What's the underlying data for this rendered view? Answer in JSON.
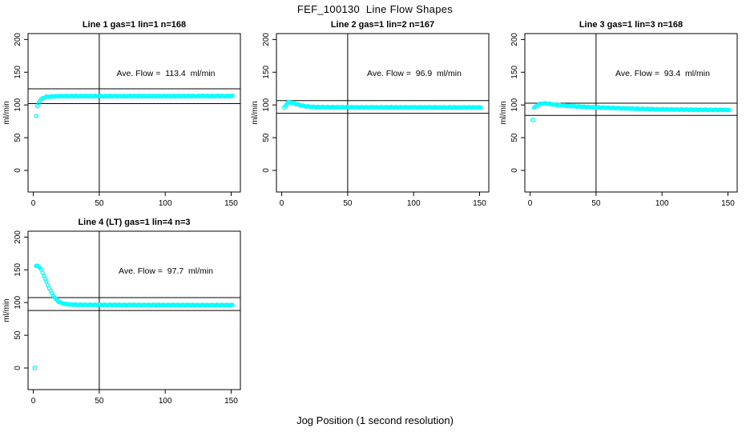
{
  "figure": {
    "title": "FEF_100130  Line Flow Shapes",
    "xlabel": "Jog Position (1 second resolution)",
    "colors": {
      "points": "#00FFFF",
      "axis": "#000000",
      "background": "#FFFFFF",
      "text": "#000000"
    }
  },
  "chart_data": [
    {
      "type": "scatter",
      "title": "Line 1 gas=1 lin=1 n=168",
      "annotation": "Ave. Flow =  113.4  ml/min",
      "ave_flow": 113.4,
      "ylabel": "ml/min",
      "x_ticks": [
        0,
        50,
        100,
        150
      ],
      "y_ticks": [
        0,
        50,
        100,
        150,
        200
      ],
      "xlim": [
        -4,
        157
      ],
      "ylim": [
        -33,
        209
      ],
      "vline_x": 50,
      "hlines": [
        124.7,
        102.1
      ],
      "grid": false,
      "legend": false,
      "outliers": [],
      "curve": [
        [
          2,
          83
        ],
        [
          3,
          97.5
        ],
        [
          4,
          103.5
        ],
        [
          5,
          106.5
        ],
        [
          6,
          108.5
        ],
        [
          7,
          110
        ],
        [
          8,
          111
        ],
        [
          9,
          111.8
        ],
        [
          10,
          112.3
        ],
        [
          12,
          112.8
        ],
        [
          14,
          113
        ],
        [
          16,
          113.2
        ],
        [
          18,
          113.3
        ],
        [
          20,
          113.4
        ],
        [
          25,
          113.4
        ],
        [
          30,
          113.5
        ],
        [
          35,
          113.4
        ],
        [
          40,
          113.5
        ],
        [
          45,
          113.4
        ],
        [
          50,
          113.5
        ],
        [
          55,
          113.4
        ],
        [
          60,
          113.5
        ],
        [
          65,
          113.4
        ],
        [
          70,
          113.5
        ],
        [
          75,
          113.4
        ],
        [
          80,
          113.5
        ],
        [
          85,
          113.4
        ],
        [
          90,
          113.5
        ],
        [
          95,
          113.4
        ],
        [
          100,
          113.5
        ],
        [
          105,
          113.4
        ],
        [
          110,
          113.5
        ],
        [
          115,
          113.5
        ],
        [
          120,
          113.6
        ],
        [
          125,
          113.5
        ],
        [
          130,
          113.7
        ],
        [
          135,
          113.5
        ],
        [
          140,
          113.6
        ],
        [
          145,
          113.5
        ],
        [
          151,
          113.6
        ]
      ]
    },
    {
      "type": "scatter",
      "title": "Line 2 gas=1 lin=2 n=167",
      "annotation": "Ave. Flow =  96.9  ml/min",
      "ave_flow": 96.9,
      "ylabel": "ml/min",
      "x_ticks": [
        0,
        50,
        100,
        150
      ],
      "y_ticks": [
        0,
        50,
        100,
        150,
        200
      ],
      "xlim": [
        -4,
        157
      ],
      "ylim": [
        -33,
        209
      ],
      "vline_x": 50,
      "hlines": [
        106.6,
        87.2
      ],
      "grid": false,
      "legend": false,
      "outliers": [
        [
          2,
          96.2
        ]
      ],
      "curve": [
        [
          3,
          99.5
        ],
        [
          4,
          102.3
        ],
        [
          5,
          103.8
        ],
        [
          6,
          104.2
        ],
        [
          7,
          104
        ],
        [
          8,
          103.4
        ],
        [
          9,
          102.7
        ],
        [
          10,
          102
        ],
        [
          11,
          101.3
        ],
        [
          12,
          100.7
        ],
        [
          13,
          100.1
        ],
        [
          14,
          99.6
        ],
        [
          15,
          99.1
        ],
        [
          16,
          98.7
        ],
        [
          17,
          98.4
        ],
        [
          18,
          98.1
        ],
        [
          19,
          97.8
        ],
        [
          20,
          97.6
        ],
        [
          22,
          97.2
        ],
        [
          24,
          97
        ],
        [
          26,
          96.8
        ],
        [
          28,
          96.7
        ],
        [
          30,
          96.6
        ],
        [
          35,
          96.6
        ],
        [
          40,
          96.5
        ],
        [
          45,
          96.5
        ],
        [
          50,
          96.5
        ],
        [
          60,
          96.4
        ],
        [
          70,
          96.4
        ],
        [
          80,
          96.4
        ],
        [
          90,
          96.3
        ],
        [
          100,
          96.3
        ],
        [
          110,
          96.3
        ],
        [
          120,
          96.2
        ],
        [
          130,
          96.2
        ],
        [
          140,
          96.2
        ],
        [
          151,
          96.2
        ]
      ]
    },
    {
      "type": "scatter",
      "title": "Line 3 gas=1 lin=3 n=168",
      "annotation": "Ave. Flow =  93.4  ml/min",
      "ave_flow": 93.4,
      "ylabel": "ml/min",
      "x_ticks": [
        0,
        50,
        100,
        150
      ],
      "y_ticks": [
        0,
        50,
        100,
        150,
        200
      ],
      "xlim": [
        -4,
        157
      ],
      "ylim": [
        -33,
        209
      ],
      "vline_x": 50,
      "hlines": [
        102.7,
        84.1
      ],
      "grid": false,
      "legend": false,
      "outliers": [
        [
          2,
          77
        ]
      ],
      "curve": [
        [
          3,
          95.5
        ],
        [
          4,
          97
        ],
        [
          5,
          98.8
        ],
        [
          6,
          100.2
        ],
        [
          7,
          101.2
        ],
        [
          8,
          101.8
        ],
        [
          9,
          102.1
        ],
        [
          10,
          102.3
        ],
        [
          11,
          102.3
        ],
        [
          12,
          102.2
        ],
        [
          13,
          102
        ],
        [
          14,
          101.8
        ],
        [
          15,
          101.5
        ],
        [
          16,
          101.2
        ],
        [
          18,
          100.7
        ],
        [
          20,
          100.2
        ],
        [
          22,
          99.8
        ],
        [
          24,
          99.4
        ],
        [
          26,
          99
        ],
        [
          28,
          98.7
        ],
        [
          30,
          98.4
        ],
        [
          33,
          98
        ],
        [
          36,
          97.6
        ],
        [
          39,
          97.3
        ],
        [
          42,
          97
        ],
        [
          45,
          96.7
        ],
        [
          48,
          96.4
        ],
        [
          50,
          96.3
        ],
        [
          55,
          95.9
        ],
        [
          60,
          95.5
        ],
        [
          65,
          95.2
        ],
        [
          70,
          94.9
        ],
        [
          75,
          94.6
        ],
        [
          80,
          94.3
        ],
        [
          85,
          94
        ],
        [
          90,
          93.8
        ],
        [
          95,
          93.5
        ],
        [
          100,
          93.3
        ],
        [
          105,
          93.2
        ],
        [
          110,
          93
        ],
        [
          115,
          92.9
        ],
        [
          120,
          92.8
        ],
        [
          125,
          92.7
        ],
        [
          130,
          92.6
        ],
        [
          135,
          92.5
        ],
        [
          140,
          92.5
        ],
        [
          145,
          92.4
        ],
        [
          151,
          92.4
        ]
      ]
    },
    {
      "type": "scatter",
      "title": "Line 4 (LT) gas=1 lin=4 n=3",
      "annotation": "Ave. Flow =  97.7  ml/min",
      "ave_flow": 97.7,
      "ylabel": "ml/min",
      "x_ticks": [
        0,
        50,
        100,
        150
      ],
      "y_ticks": [
        0,
        50,
        100,
        150,
        200
      ],
      "xlim": [
        -4,
        157
      ],
      "ylim": [
        -33,
        209
      ],
      "vline_x": 50,
      "hlines": [
        107.5,
        87.9
      ],
      "grid": false,
      "legend": false,
      "outliers": [
        [
          1,
          0
        ]
      ],
      "curve": [
        [
          2,
          155.5
        ],
        [
          3,
          156.2
        ],
        [
          4,
          155.5
        ],
        [
          5,
          153.3
        ],
        [
          6,
          149.8
        ],
        [
          7,
          145.6
        ],
        [
          8,
          141
        ],
        [
          9,
          136.3
        ],
        [
          10,
          131.5
        ],
        [
          11,
          126.8
        ],
        [
          12,
          122.3
        ],
        [
          13,
          118
        ],
        [
          14,
          114.2
        ],
        [
          15,
          110.8
        ],
        [
          16,
          107.9
        ],
        [
          17,
          105.4
        ],
        [
          18,
          103.4
        ],
        [
          19,
          101.8
        ],
        [
          20,
          100.5
        ],
        [
          21,
          99.6
        ],
        [
          22,
          98.9
        ],
        [
          24,
          98
        ],
        [
          26,
          97.4
        ],
        [
          28,
          97.1
        ],
        [
          30,
          96.9
        ],
        [
          33,
          96.7
        ],
        [
          36,
          96.6
        ],
        [
          40,
          96.5
        ],
        [
          45,
          96.5
        ],
        [
          50,
          96.4
        ],
        [
          55,
          96.4
        ],
        [
          60,
          96.4
        ],
        [
          70,
          96.3
        ],
        [
          80,
          96.3
        ],
        [
          90,
          96.3
        ],
        [
          100,
          96.2
        ],
        [
          110,
          96.2
        ],
        [
          120,
          96.2
        ],
        [
          130,
          96.1
        ],
        [
          140,
          96.1
        ],
        [
          151,
          96.1
        ]
      ]
    }
  ]
}
